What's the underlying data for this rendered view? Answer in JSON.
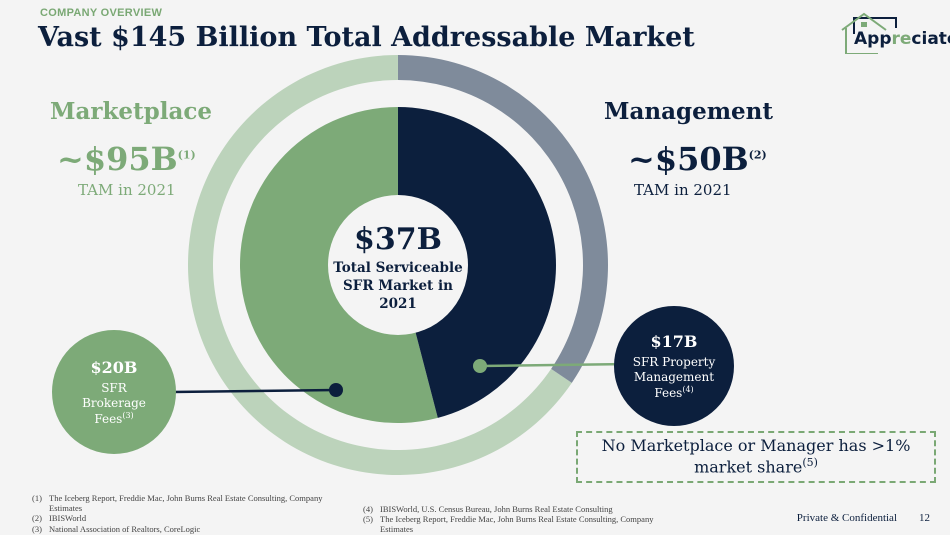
{
  "header": {
    "eyebrow": "COMPANY OVERVIEW",
    "title": "Vast $145 Billion Total Addressable Market"
  },
  "logo": {
    "text_a": "App",
    "text_b": "re",
    "text_c": "ciate"
  },
  "marketplace": {
    "label": "Marketplace",
    "value": "~$95B",
    "ref": "(1)",
    "sub": "TAM in 2021"
  },
  "management": {
    "label": "Management",
    "value": "~$50B",
    "ref": "(2)",
    "sub": "TAM in 2021"
  },
  "center": {
    "value": "$37B",
    "line1": "Total Serviceable",
    "line2": "SFR Market in",
    "line3": "2021"
  },
  "brokerage": {
    "value": "$20B",
    "line1": "SFR",
    "line2": "Brokerage",
    "line3": "Fees",
    "ref": "(3)"
  },
  "propmgmt": {
    "value": "$17B",
    "line1": "SFR Property",
    "line2": "Management",
    "line3": "Fees",
    "ref": "(4)"
  },
  "note": {
    "text": "No Marketplace or Manager has >1% market share",
    "ref": "(5)"
  },
  "chart_data": {
    "type": "pie",
    "outer": {
      "categories": [
        "Management",
        "Marketplace"
      ],
      "values": [
        50,
        95
      ]
    },
    "inner": {
      "categories": [
        "SFR Property Management Fees",
        "SFR Brokerage Fees"
      ],
      "values": [
        17,
        20
      ]
    },
    "colors": {
      "mgmt_outer": "#7f8b9b",
      "mkt_outer": "#bcd3bb",
      "mgmt_inner": "#0c1f3d",
      "mkt_inner": "#7daa78"
    }
  },
  "footnotes": [
    {
      "n": "(1)",
      "t": "The Iceberg Report, Freddie Mac, John Burns Real Estate Consulting, Company Estimates"
    },
    {
      "n": "(2)",
      "t": "IBISWorld"
    },
    {
      "n": "(3)",
      "t": "National Association of Realtors, CoreLogic"
    },
    {
      "n": "(4)",
      "t": "IBISWorld, U.S. Census Bureau, John Burns Real Estate Consulting"
    },
    {
      "n": "(5)",
      "t": "The Iceberg Report, Freddie Mac, John Burns Real Estate Consulting, Company Estimates"
    }
  ],
  "footer": {
    "text": "Private & Confidential",
    "page": "12"
  }
}
